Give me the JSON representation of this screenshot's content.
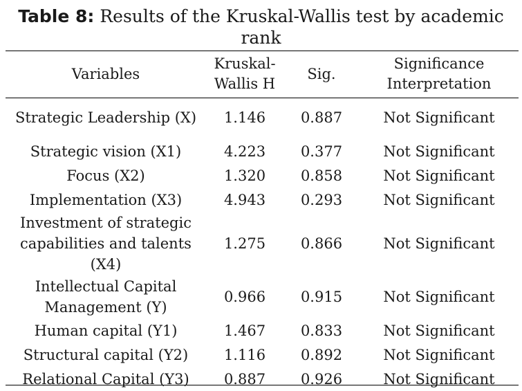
{
  "caption": {
    "label": "Table 8:",
    "text": " Results of the Kruskal-Wallis test by academic rank"
  },
  "table": {
    "headers": [
      "Variables",
      "Kruskal-Wallis H",
      "Sig.",
      "Significance Interpretation"
    ],
    "rows": [
      {
        "variable": "Strategic Leadership (X)",
        "h": "1.146",
        "sig": "0.887",
        "interpretation": "Not Significant"
      },
      {
        "variable": "Strategic vision (X1)",
        "h": "4.223",
        "sig": "0.377",
        "interpretation": "Not Significant"
      },
      {
        "variable": "Focus (X2)",
        "h": "1.320",
        "sig": "0.858",
        "interpretation": "Not Significant"
      },
      {
        "variable": "Implementation (X3)",
        "h": "4.943",
        "sig": "0.293",
        "interpretation": "Not Significant"
      },
      {
        "variable": "Investment of strategic capabilities and talents (X4)",
        "h": "1.275",
        "sig": "0.866",
        "interpretation": "Not Significant"
      },
      {
        "variable": "Intellectual Capital Management (Y)",
        "h": "0.966",
        "sig": "0.915",
        "interpretation": "Not Significant"
      },
      {
        "variable": "Human capital (Y1)",
        "h": "1.467",
        "sig": "0.833",
        "interpretation": "Not Significant"
      },
      {
        "variable": "Structural capital (Y2)",
        "h": "1.116",
        "sig": "0.892",
        "interpretation": "Not Significant"
      },
      {
        "variable": "Relational Capital (Y3)",
        "h": "0.887",
        "sig": "0.926",
        "interpretation": "Not Significant"
      }
    ]
  }
}
